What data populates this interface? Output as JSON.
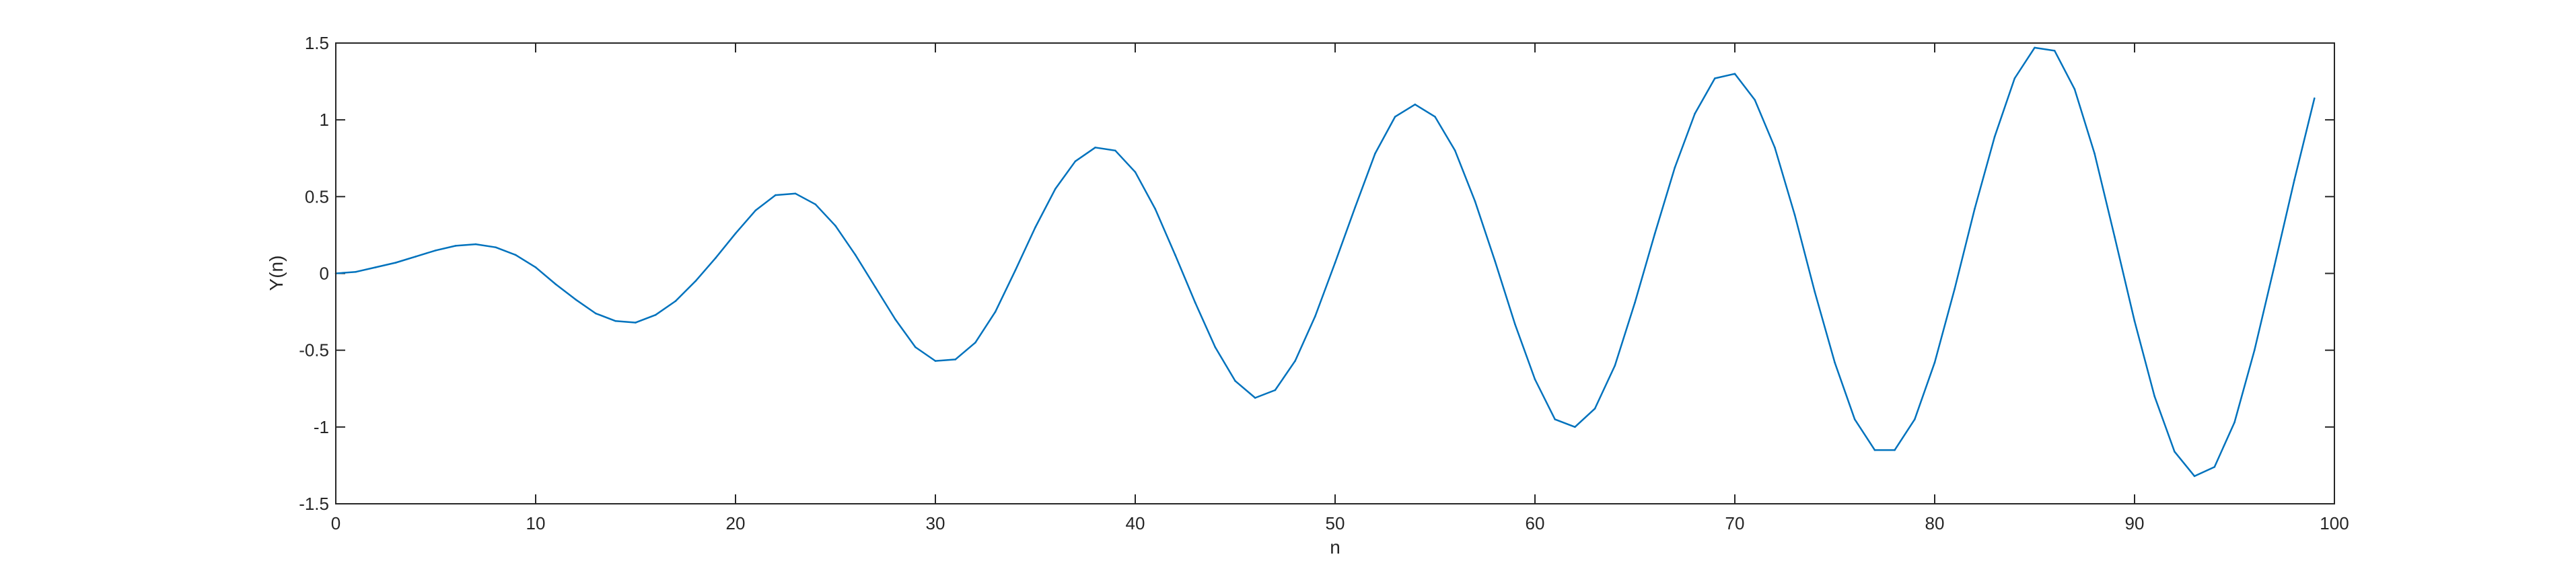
{
  "chart_data": {
    "type": "line",
    "title": "",
    "xlabel": "n",
    "ylabel": "Y(n)",
    "xlim": [
      0,
      100
    ],
    "ylim": [
      -1.5,
      1.5
    ],
    "xticks": [
      0,
      10,
      20,
      30,
      40,
      50,
      60,
      70,
      80,
      90,
      100
    ],
    "yticks": [
      1.5,
      1,
      0.5,
      0,
      -0.5,
      -1,
      -1.5
    ],
    "xtick_labels": [
      "0",
      "10",
      "20",
      "30",
      "40",
      "50",
      "60",
      "70",
      "80",
      "90",
      "100"
    ],
    "ytick_labels": [
      "1.5",
      "1",
      "0.5",
      "0",
      "-0.5",
      "-1",
      "-1.5"
    ],
    "grid": false,
    "box": true,
    "colors": {
      "line": "#0072BD",
      "axes": "#262626",
      "background": "#ffffff"
    },
    "x": [
      0,
      1,
      2,
      3,
      4,
      5,
      6,
      7,
      8,
      9,
      10,
      11,
      12,
      13,
      14,
      15,
      16,
      17,
      18,
      19,
      20,
      21,
      22,
      23,
      24,
      25,
      26,
      27,
      28,
      29,
      30,
      31,
      32,
      33,
      34,
      35,
      36,
      37,
      38,
      39,
      40,
      41,
      42,
      43,
      44,
      45,
      46,
      47,
      48,
      49,
      50,
      51,
      52,
      53,
      54,
      55,
      56,
      57,
      58,
      59,
      60,
      61,
      62,
      63,
      64,
      65,
      66,
      67,
      68,
      69,
      70,
      71,
      72,
      73,
      74,
      75,
      76,
      77,
      78,
      79,
      80,
      81,
      82,
      83,
      84,
      85,
      86,
      87,
      88,
      89,
      90,
      91,
      92,
      93,
      94,
      95,
      96,
      97,
      98,
      99
    ],
    "y": [
      0,
      0.01,
      0.04,
      0.07,
      0.11,
      0.15,
      0.18,
      0.19,
      0.17,
      0.12,
      0.04,
      -0.07,
      -0.17,
      -0.26,
      -0.31,
      -0.32,
      -0.27,
      -0.18,
      -0.05,
      0.1,
      0.26,
      0.41,
      0.51,
      0.52,
      0.45,
      0.31,
      0.12,
      -0.09,
      -0.3,
      -0.48,
      -0.57,
      -0.56,
      -0.45,
      -0.25,
      0.02,
      0.3,
      0.55,
      0.73,
      0.82,
      0.8,
      0.66,
      0.42,
      0.12,
      -0.19,
      -0.48,
      -0.7,
      -0.81,
      -0.76,
      -0.57,
      -0.28,
      0.07,
      0.43,
      0.78,
      1.02,
      1.1,
      1.02,
      0.8,
      0.47,
      0.08,
      -0.33,
      -0.69,
      -0.95,
      -1.0,
      -0.88,
      -0.6,
      -0.19,
      0.26,
      0.69,
      1.04,
      1.27,
      1.3,
      1.13,
      0.82,
      0.38,
      -0.12,
      -0.58,
      -0.95,
      -1.15,
      -1.15,
      -0.95,
      -0.58,
      -0.1,
      0.42,
      0.89,
      1.27,
      1.47,
      1.45,
      1.2,
      0.78,
      0.24,
      -0.31,
      -0.8,
      -1.16,
      -1.32,
      -1.26,
      -0.97,
      -0.5,
      0.05,
      0.61,
      1.14
    ]
  }
}
